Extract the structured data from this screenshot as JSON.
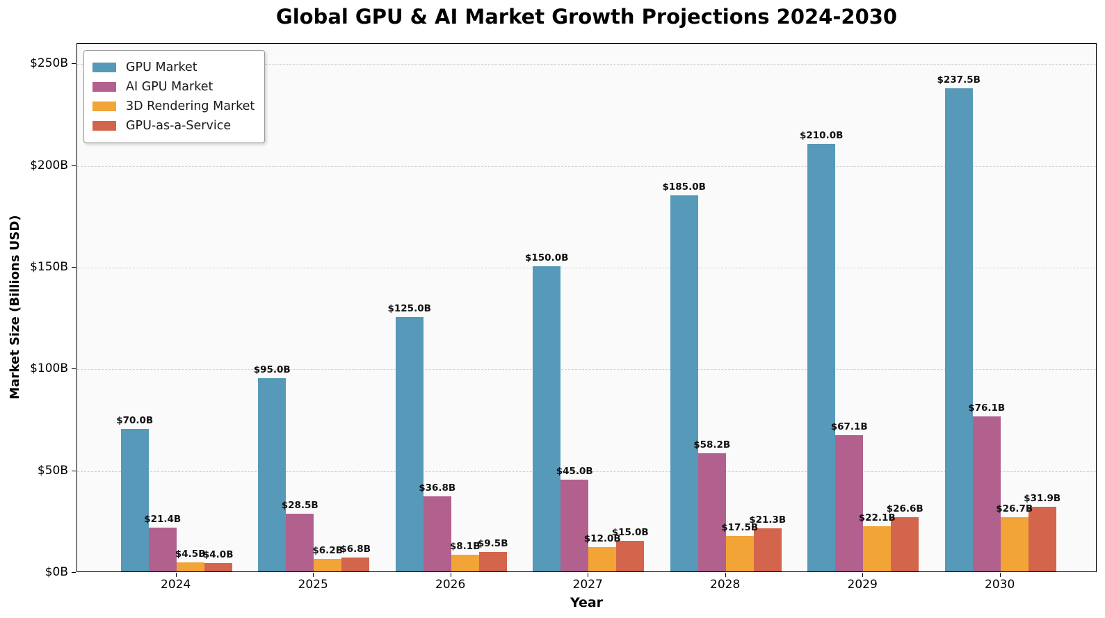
{
  "title": "Global GPU & AI Market Growth Projections 2024-2030",
  "chart_data": {
    "type": "bar",
    "title": "Global GPU & AI Market Growth Projections 2024-2030",
    "xlabel": "Year",
    "ylabel": "Market Size (Billions USD)",
    "categories": [
      "2024",
      "2025",
      "2026",
      "2027",
      "2028",
      "2029",
      "2030"
    ],
    "series": [
      {
        "name": "GPU Market",
        "color": "#5699B8",
        "values": [
          70.0,
          95.0,
          125.0,
          150.0,
          185.0,
          210.0,
          237.5
        ],
        "labels": [
          "$70.0B",
          "$95.0B",
          "$125.0B",
          "$150.0B",
          "$185.0B",
          "$210.0B",
          "$237.5B"
        ]
      },
      {
        "name": "AI GPU Market",
        "color": "#B2618E",
        "values": [
          21.4,
          28.5,
          36.8,
          45.0,
          58.2,
          67.1,
          76.1
        ],
        "labels": [
          "$21.4B",
          "$28.5B",
          "$36.8B",
          "$45.0B",
          "$58.2B",
          "$67.1B",
          "$76.1B"
        ]
      },
      {
        "name": "3D Rendering Market",
        "color": "#F2A437",
        "values": [
          4.5,
          6.2,
          8.1,
          12.0,
          17.5,
          22.1,
          26.7
        ],
        "labels": [
          "$4.5B",
          "$6.2B",
          "$8.1B",
          "$12.0B",
          "$17.5B",
          "$22.1B",
          "$26.7B"
        ]
      },
      {
        "name": "GPU-as-a-Service",
        "color": "#D2654C",
        "values": [
          4.0,
          6.8,
          9.5,
          15.0,
          21.3,
          26.6,
          31.9
        ],
        "labels": [
          "$4.0B",
          "$6.8B",
          "$9.5B",
          "$15.0B",
          "$21.3B",
          "$26.6B",
          "$31.9B"
        ]
      }
    ],
    "ylim": [
      0,
      260
    ],
    "ytick_values": [
      0,
      50,
      100,
      150,
      200,
      250
    ],
    "ytick_labels": [
      "$0B",
      "$50B",
      "$100B",
      "$150B",
      "$200B",
      "$250B"
    ],
    "grid": "horizontal-dashed",
    "legend_position": "upper-left",
    "plot_bg_color": "#fafafa",
    "grid_color": "#cfcfcf"
  }
}
